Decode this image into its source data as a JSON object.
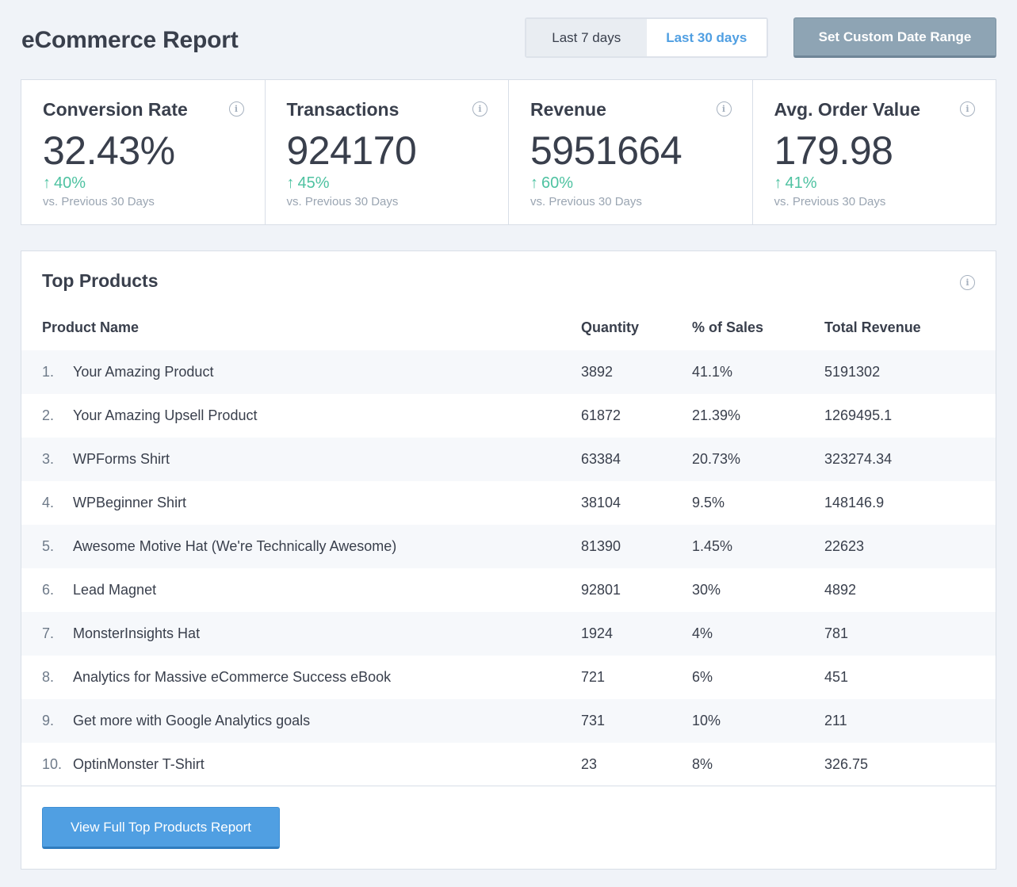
{
  "header": {
    "title": "eCommerce Report",
    "range_options": [
      "Last 7 days",
      "Last 30 days"
    ],
    "active_range": "Last 30 days",
    "custom_range_label": "Set Custom Date Range"
  },
  "kpis": [
    {
      "title": "Conversion Rate",
      "value": "32.43%",
      "change": "40%",
      "direction": "up",
      "compare": "vs. Previous 30 Days"
    },
    {
      "title": "Transactions",
      "value": "924170",
      "change": "45%",
      "direction": "up",
      "compare": "vs. Previous 30 Days"
    },
    {
      "title": "Revenue",
      "value": "5951664",
      "change": "60%",
      "direction": "up",
      "compare": "vs. Previous 30 Days"
    },
    {
      "title": "Avg. Order Value",
      "value": "179.98",
      "change": "41%",
      "direction": "up",
      "compare": "vs. Previous 30 Days"
    }
  ],
  "top_products": {
    "title": "Top Products",
    "columns": [
      "Product Name",
      "Quantity",
      "% of Sales",
      "Total Revenue"
    ],
    "rows": [
      {
        "rank": "1.",
        "name": "Your Amazing Product",
        "quantity": "3892",
        "pct": "41.1%",
        "revenue": "5191302"
      },
      {
        "rank": "2.",
        "name": "Your Amazing Upsell Product",
        "quantity": "61872",
        "pct": "21.39%",
        "revenue": "1269495.1"
      },
      {
        "rank": "3.",
        "name": "WPForms Shirt",
        "quantity": "63384",
        "pct": "20.73%",
        "revenue": "323274.34"
      },
      {
        "rank": "4.",
        "name": "WPBeginner Shirt",
        "quantity": "38104",
        "pct": "9.5%",
        "revenue": "148146.9"
      },
      {
        "rank": "5.",
        "name": "Awesome Motive Hat (We're Technically Awesome)",
        "quantity": "81390",
        "pct": "1.45%",
        "revenue": "22623"
      },
      {
        "rank": "6.",
        "name": "Lead Magnet",
        "quantity": "92801",
        "pct": "30%",
        "revenue": "4892"
      },
      {
        "rank": "7.",
        "name": "MonsterInsights Hat",
        "quantity": "1924",
        "pct": "4%",
        "revenue": "781"
      },
      {
        "rank": "8.",
        "name": "Analytics for Massive eCommerce Success eBook",
        "quantity": "721",
        "pct": "6%",
        "revenue": "451"
      },
      {
        "rank": "9.",
        "name": "Get more with Google Analytics goals",
        "quantity": "731",
        "pct": "10%",
        "revenue": "211"
      },
      {
        "rank": "10.",
        "name": "OptinMonster T-Shirt",
        "quantity": "23",
        "pct": "8%",
        "revenue": "326.75"
      }
    ],
    "full_report_label": "View Full Top Products Report"
  },
  "colors": {
    "accent": "#509fe2",
    "positive": "#4ec2a1",
    "custom_button": "#8ea4b4"
  },
  "icons": {
    "info": "info-icon",
    "trend_up": "arrow-up-icon"
  }
}
